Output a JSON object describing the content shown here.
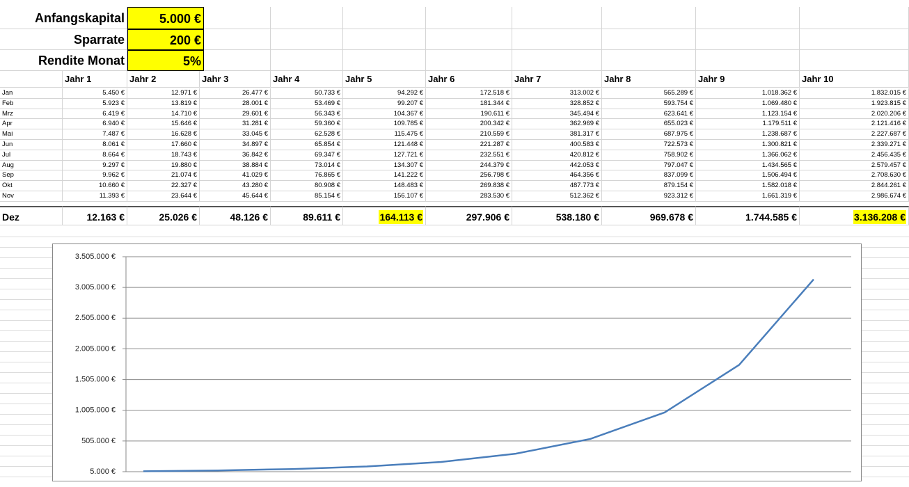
{
  "inputs": [
    {
      "label": "Anfangskapital",
      "value": "5.000 €"
    },
    {
      "label": "Sparrate",
      "value": "200 €"
    },
    {
      "label": "Rendite Monat",
      "value": "5%"
    }
  ],
  "table": {
    "columns": [
      "Jahr 1",
      "Jahr 2",
      "Jahr 3",
      "Jahr 4",
      "Jahr 5",
      "Jahr 6",
      "Jahr 7",
      "Jahr 8",
      "Jahr 9",
      "Jahr 10"
    ],
    "rows": [
      [
        "Jan",
        "5.450 €",
        "12.971 €",
        "26.477 €",
        "50.733 €",
        "94.292 €",
        "172.518 €",
        "313.002 €",
        "565.289 €",
        "1.018.362 €",
        "1.832.015 €"
      ],
      [
        "Feb",
        "5.923 €",
        "13.819 €",
        "28.001 €",
        "53.469 €",
        "99.207 €",
        "181.344 €",
        "328.852 €",
        "593.754 €",
        "1.069.480 €",
        "1.923.815 €"
      ],
      [
        "Mrz",
        "6.419 €",
        "14.710 €",
        "29.601 €",
        "56.343 €",
        "104.367 €",
        "190.611 €",
        "345.494 €",
        "623.641 €",
        "1.123.154 €",
        "2.020.206 €"
      ],
      [
        "Apr",
        "6.940 €",
        "15.646 €",
        "31.281 €",
        "59.360 €",
        "109.785 €",
        "200.342 €",
        "362.969 €",
        "655.023 €",
        "1.179.511 €",
        "2.121.416 €"
      ],
      [
        "Mai",
        "7.487 €",
        "16.628 €",
        "33.045 €",
        "62.528 €",
        "115.475 €",
        "210.559 €",
        "381.317 €",
        "687.975 €",
        "1.238.687 €",
        "2.227.687 €"
      ],
      [
        "Jun",
        "8.061 €",
        "17.660 €",
        "34.897 €",
        "65.854 €",
        "121.448 €",
        "221.287 €",
        "400.583 €",
        "722.573 €",
        "1.300.821 €",
        "2.339.271 €"
      ],
      [
        "Jul",
        "8.664 €",
        "18.743 €",
        "36.842 €",
        "69.347 €",
        "127.721 €",
        "232.551 €",
        "420.812 €",
        "758.902 €",
        "1.366.062 €",
        "2.456.435 €"
      ],
      [
        "Aug",
        "9.297 €",
        "19.880 €",
        "38.884 €",
        "73.014 €",
        "134.307 €",
        "244.379 €",
        "442.053 €",
        "797.047 €",
        "1.434.565 €",
        "2.579.457 €"
      ],
      [
        "Sep",
        "9.962 €",
        "21.074 €",
        "41.029 €",
        "76.865 €",
        "141.222 €",
        "256.798 €",
        "464.356 €",
        "837.099 €",
        "1.506.494 €",
        "2.708.630 €"
      ],
      [
        "Okt",
        "10.660 €",
        "22.327 €",
        "43.280 €",
        "80.908 €",
        "148.483 €",
        "269.838 €",
        "487.773 €",
        "879.154 €",
        "1.582.018 €",
        "2.844.261 €"
      ],
      [
        "Nov",
        "11.393 €",
        "23.644 €",
        "45.644 €",
        "85.154 €",
        "156.107 €",
        "283.530 €",
        "512.362 €",
        "923.312 €",
        "1.661.319 €",
        "2.986.674 €"
      ],
      [
        "Dez",
        "12.163 €",
        "25.026 €",
        "48.126 €",
        "89.611 €",
        "164.113 €",
        "297.906 €",
        "538.180 €",
        "969.678 €",
        "1.744.585 €",
        "3.136.208 €"
      ]
    ]
  },
  "chart_data": {
    "type": "line",
    "color": "#4a7ebb",
    "values": [
      12163,
      25026,
      48126,
      89611,
      164113,
      297906,
      538180,
      969678,
      1744585,
      3136208
    ],
    "ylim": [
      5000,
      3505000
    ],
    "yticks": [
      {
        "value": 5000,
        "label": "5.000 €"
      },
      {
        "value": 505000,
        "label": "505.000 €"
      },
      {
        "value": 1005000,
        "label": "1.005.000 €"
      },
      {
        "value": 1505000,
        "label": "1.505.000 €"
      },
      {
        "value": 2005000,
        "label": "2.005.000 €"
      },
      {
        "value": 2505000,
        "label": "2.505.000 €"
      },
      {
        "value": 3005000,
        "label": "3.005.000 €"
      },
      {
        "value": 3505000,
        "label": "3.505.000 €"
      }
    ],
    "grid": true
  }
}
